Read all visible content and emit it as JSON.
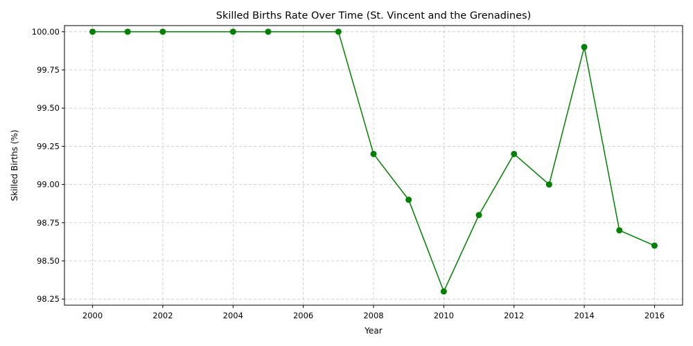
{
  "chart_data": {
    "type": "line",
    "title": "Skilled Births Rate Over Time (St. Vincent and the Grenadines)",
    "xlabel": "Year",
    "ylabel": "Skilled Births (%)",
    "xlim": [
      1999.2,
      2016.8
    ],
    "ylim": [
      98.21,
      100.04
    ],
    "xticks": [
      2000,
      2002,
      2004,
      2006,
      2008,
      2010,
      2012,
      2014,
      2016
    ],
    "yticks": [
      98.25,
      98.5,
      98.75,
      99.0,
      99.25,
      99.5,
      99.75,
      100.0
    ],
    "grid": true,
    "color": "#008000",
    "x": [
      2000,
      2001,
      2002,
      2004,
      2005,
      2007,
      2008,
      2009,
      2010,
      2011,
      2012,
      2013,
      2014,
      2015,
      2016
    ],
    "y": [
      100.0,
      100.0,
      100.0,
      100.0,
      100.0,
      100.0,
      99.2,
      98.9,
      98.3,
      98.8,
      99.2,
      99.0,
      99.9,
      98.7,
      98.6
    ]
  }
}
